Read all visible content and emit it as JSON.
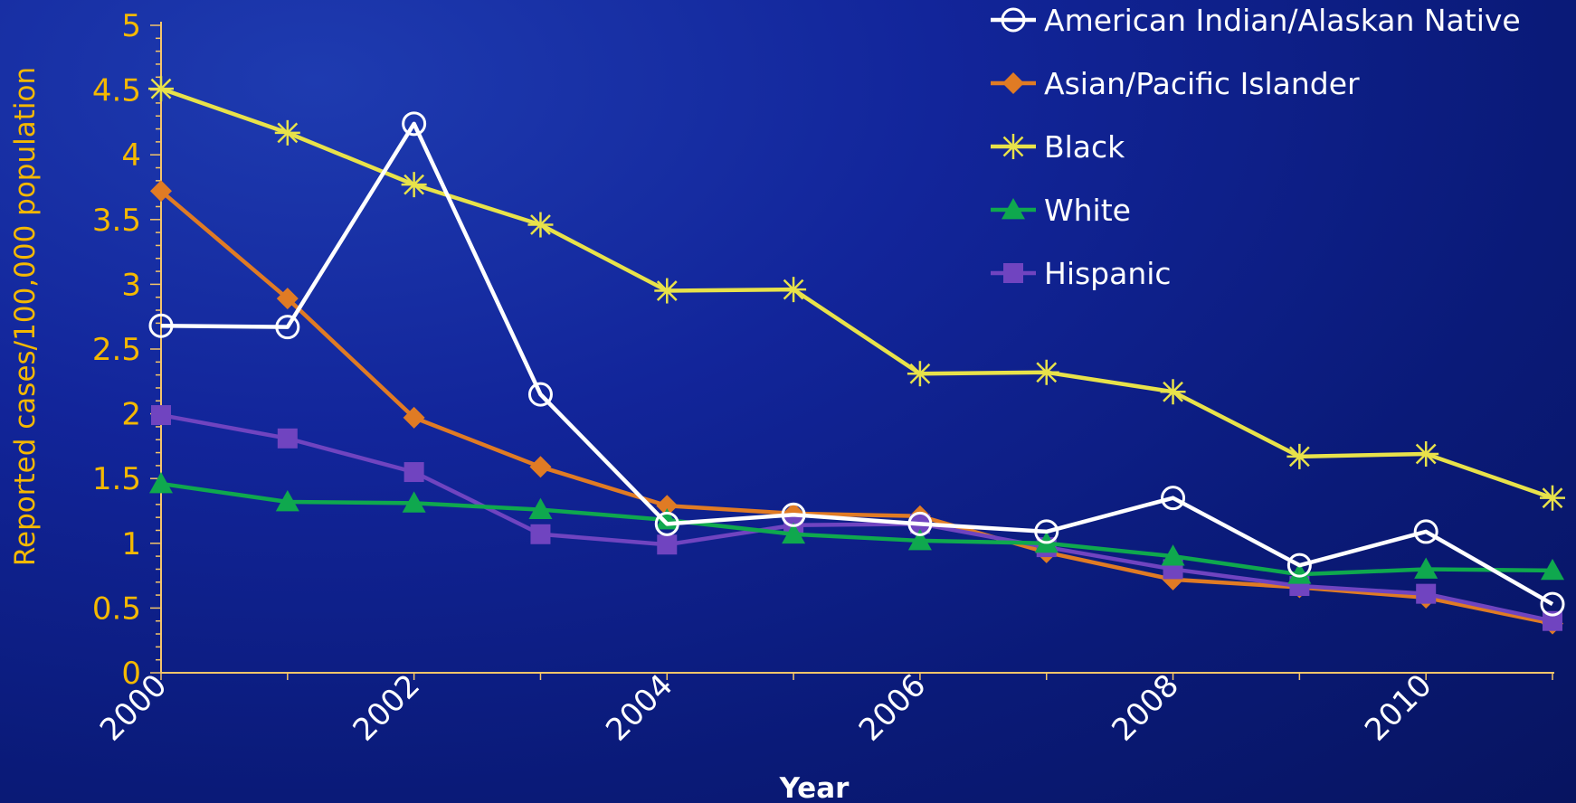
{
  "chart_data": {
    "type": "line",
    "xlabel": "Year",
    "ylabel": "Reported cases/100,000 population",
    "ylim": [
      0,
      5
    ],
    "y_ticks": [
      "0",
      "0.5",
      "1",
      "1.5",
      "2",
      "2.5",
      "3",
      "3.5",
      "4",
      "4.5",
      "5"
    ],
    "x": [
      2000,
      2001,
      2002,
      2003,
      2004,
      2005,
      2006,
      2007,
      2008,
      2009,
      2010,
      2011
    ],
    "x_ticks": [
      "2000",
      "2002",
      "2004",
      "2006",
      "2008",
      "2010"
    ],
    "grid": false,
    "legend_position": "top-right",
    "series": [
      {
        "name": "American Indian/Alaskan Native",
        "color": "#ffffff",
        "marker": "open-circle",
        "values": [
          2.68,
          2.67,
          4.24,
          2.15,
          1.15,
          1.22,
          1.15,
          1.09,
          1.35,
          0.83,
          1.09,
          0.53
        ]
      },
      {
        "name": "Asian/Pacific Islander",
        "color": "#e07b24",
        "marker": "diamond",
        "values": [
          3.72,
          2.89,
          1.97,
          1.59,
          1.29,
          1.23,
          1.21,
          0.93,
          0.72,
          0.66,
          0.58,
          0.38
        ]
      },
      {
        "name": "Black",
        "color": "#e8e24a",
        "marker": "asterisk",
        "values": [
          4.51,
          4.17,
          3.77,
          3.46,
          2.95,
          2.96,
          2.31,
          2.32,
          2.17,
          1.67,
          1.69,
          1.35
        ]
      },
      {
        "name": "White",
        "color": "#0fa84e",
        "marker": "triangle",
        "values": [
          1.46,
          1.32,
          1.31,
          1.26,
          1.18,
          1.07,
          1.02,
          1.0,
          0.9,
          0.76,
          0.8,
          0.79
        ]
      },
      {
        "name": "Hispanic",
        "color": "#7044c0",
        "marker": "square",
        "values": [
          1.99,
          1.81,
          1.55,
          1.07,
          0.99,
          1.14,
          1.15,
          0.97,
          0.8,
          0.67,
          0.61,
          0.4
        ]
      }
    ]
  }
}
